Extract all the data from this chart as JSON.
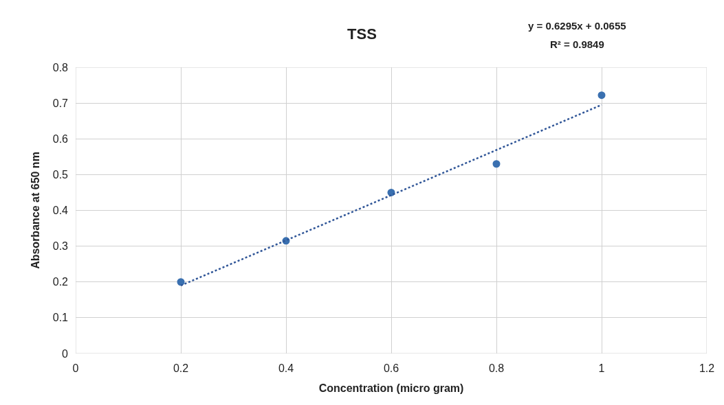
{
  "chart_data": {
    "type": "scatter",
    "title": "TSS",
    "xlabel": "Concentration (micro gram)",
    "ylabel": "Absorbance at 650 nm",
    "annotations": [
      "y = 0.6295x + 0.0655",
      "R² = 0.9849"
    ],
    "series": [
      {
        "color": "#3a70b0",
        "x": [
          0.2,
          0.4,
          0.6,
          0.8,
          1.0
        ],
        "values": [
          0.2,
          0.315,
          0.45,
          0.53,
          0.722
        ],
        "marker": "circle"
      },
      {
        "type": "line",
        "color": "#2f5597",
        "x": [
          0.2,
          1.0
        ],
        "values": [
          0.19,
          0.695
        ],
        "line_style": "dotted",
        "marker": "none"
      }
    ],
    "xlim": [
      0,
      1.2
    ],
    "xticks": [
      0,
      0.2,
      0.4,
      0.6,
      0.8,
      1,
      1.2
    ],
    "ylim": [
      0,
      0.8
    ],
    "yticks": [
      0,
      0.1,
      0.2,
      0.3,
      0.4,
      0.5,
      0.6,
      0.7,
      0.8
    ],
    "grid": true
  }
}
